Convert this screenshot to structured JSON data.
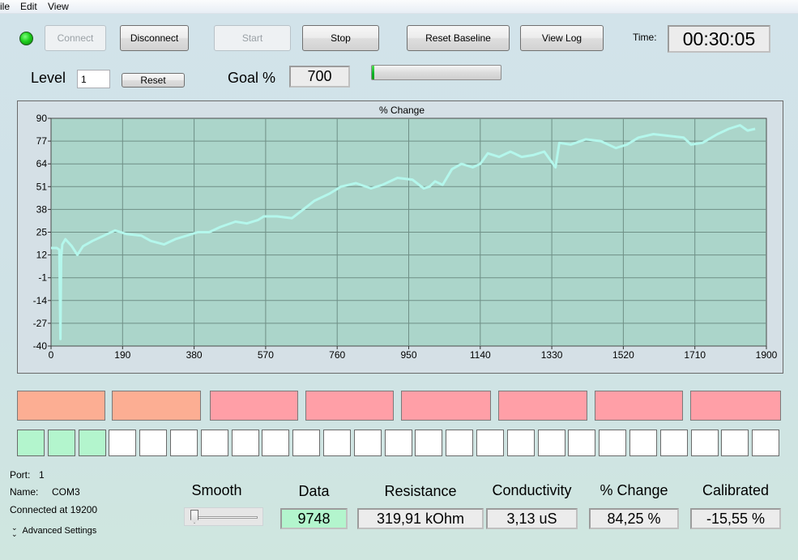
{
  "menu": [
    "ile",
    "Edit",
    "View"
  ],
  "status_led_color": "#1ed11e",
  "toolbar": {
    "connect": "Connect",
    "disconnect": "Disconnect",
    "start": "Start",
    "stop": "Stop",
    "reset_baseline": "Reset Baseline",
    "view_log": "View Log",
    "time_label": "Time:",
    "time_value": "00:30:05"
  },
  "level": {
    "label": "Level",
    "value": "1",
    "reset": "Reset"
  },
  "goal": {
    "label": "Goal %",
    "value": "700",
    "progress_fraction": 0.02
  },
  "chart_data": {
    "type": "line",
    "title": "% Change",
    "xlim": [
      0,
      1900
    ],
    "ylim": [
      -40,
      90
    ],
    "x_ticks": [
      0,
      190,
      380,
      570,
      760,
      950,
      1140,
      1330,
      1520,
      1710,
      1900
    ],
    "y_ticks": [
      90,
      77,
      64,
      51,
      38,
      25,
      12,
      -1,
      -14,
      -27,
      -40
    ],
    "grid": true,
    "series": [
      {
        "color": "#b4f7ec",
        "points": [
          [
            0,
            16
          ],
          [
            15,
            16
          ],
          [
            22,
            15
          ],
          [
            25,
            -36
          ],
          [
            27,
            10
          ],
          [
            30,
            18
          ],
          [
            38,
            21
          ],
          [
            55,
            17
          ],
          [
            70,
            12
          ],
          [
            85,
            17
          ],
          [
            110,
            20
          ],
          [
            140,
            23
          ],
          [
            170,
            26
          ],
          [
            200,
            24
          ],
          [
            240,
            23
          ],
          [
            265,
            20
          ],
          [
            300,
            18
          ],
          [
            330,
            21
          ],
          [
            360,
            23
          ],
          [
            390,
            25
          ],
          [
            420,
            25
          ],
          [
            450,
            28
          ],
          [
            490,
            31
          ],
          [
            520,
            30
          ],
          [
            550,
            32
          ],
          [
            565,
            34
          ],
          [
            600,
            34
          ],
          [
            640,
            33
          ],
          [
            670,
            38
          ],
          [
            700,
            43
          ],
          [
            740,
            47
          ],
          [
            770,
            51
          ],
          [
            810,
            53
          ],
          [
            850,
            50
          ],
          [
            880,
            52
          ],
          [
            920,
            56
          ],
          [
            960,
            55
          ],
          [
            990,
            50
          ],
          [
            1005,
            51
          ],
          [
            1020,
            54
          ],
          [
            1040,
            52
          ],
          [
            1065,
            61
          ],
          [
            1090,
            64
          ],
          [
            1120,
            62
          ],
          [
            1140,
            64
          ],
          [
            1160,
            70
          ],
          [
            1190,
            68
          ],
          [
            1220,
            71
          ],
          [
            1250,
            68
          ],
          [
            1280,
            69
          ],
          [
            1310,
            71
          ],
          [
            1340,
            62
          ],
          [
            1350,
            76
          ],
          [
            1380,
            75
          ],
          [
            1420,
            78
          ],
          [
            1460,
            77
          ],
          [
            1500,
            73
          ],
          [
            1530,
            75
          ],
          [
            1560,
            79
          ],
          [
            1600,
            81
          ],
          [
            1640,
            80
          ],
          [
            1680,
            79
          ],
          [
            1700,
            75
          ],
          [
            1730,
            76
          ],
          [
            1770,
            81
          ],
          [
            1800,
            84
          ],
          [
            1830,
            86
          ],
          [
            1850,
            83
          ],
          [
            1870,
            84
          ]
        ]
      }
    ]
  },
  "indicator_blocks": [
    {
      "color": "#fcae93"
    },
    {
      "color": "#fcae93"
    },
    {
      "color": "#ff9fa7"
    },
    {
      "color": "#ff9fa7"
    },
    {
      "color": "#ff9fa7"
    },
    {
      "color": "#ff9fa7"
    },
    {
      "color": "#ff9fa7"
    },
    {
      "color": "#ff9fa7"
    }
  ],
  "level_cells": {
    "total": 25,
    "active": 3,
    "active_color": "#b3f5cd"
  },
  "port_info": {
    "port_label": "Port:",
    "port_value": "1",
    "name_label": "Name:",
    "name_value": "COM3",
    "connected": "Connected at 19200",
    "advanced": "Advanced Settings"
  },
  "readouts": {
    "smooth_label": "Smooth",
    "smooth_value_fraction": 0.0,
    "data_label": "Data",
    "data_value": "9748",
    "resistance_label": "Resistance",
    "resistance_value": "319,91 kOhm",
    "conductivity_label": "Conductivity",
    "conductivity_value": "3,13 uS",
    "change_label": "% Change",
    "change_value": "84,25 %",
    "calibrated_label": "Calibrated",
    "calibrated_value": "-15,55 %"
  }
}
